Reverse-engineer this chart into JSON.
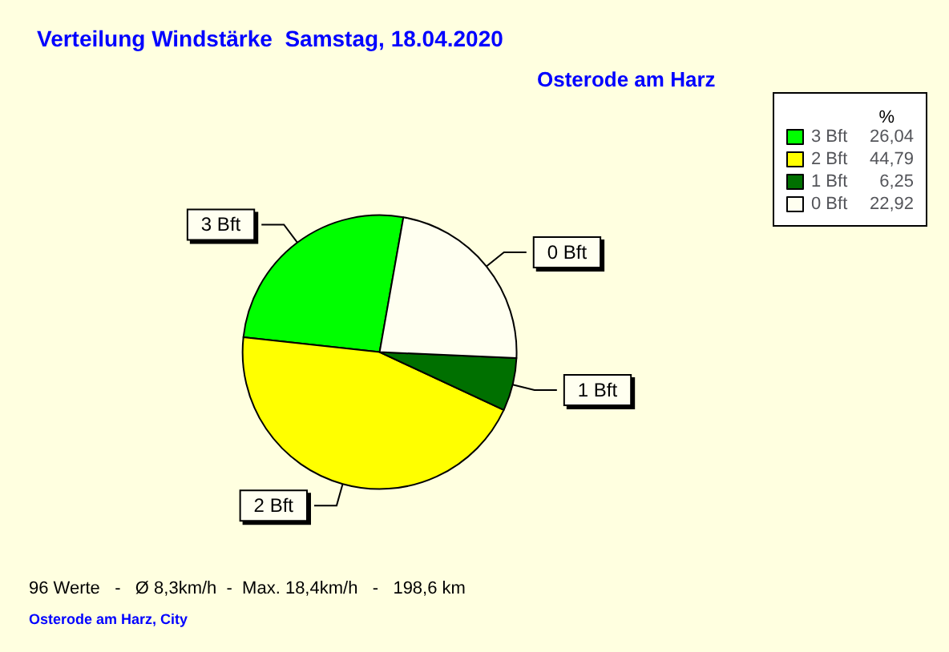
{
  "chart_data": {
    "type": "pie",
    "title": "Verteilung Windstärke  Samstag, 18.04.2020",
    "subtitle": "Osterode am Harz",
    "categories": [
      "3 Bft",
      "2 Bft",
      "1 Bft",
      "0 Bft"
    ],
    "values": [
      26.04,
      44.79,
      6.25,
      22.92
    ],
    "colors": [
      "#00ff00",
      "#ffff00",
      "#007000",
      "#fffff0"
    ],
    "value_labels": [
      "26,04",
      "44,79",
      "6,25",
      "22,92"
    ],
    "legend": "top right",
    "legend_title": "%",
    "annotations": [
      "96 Werte   -   Ø 8,3km/h  -  Max. 18,4km/h   -   198,6 km",
      "Osterode am Harz, City"
    ]
  }
}
